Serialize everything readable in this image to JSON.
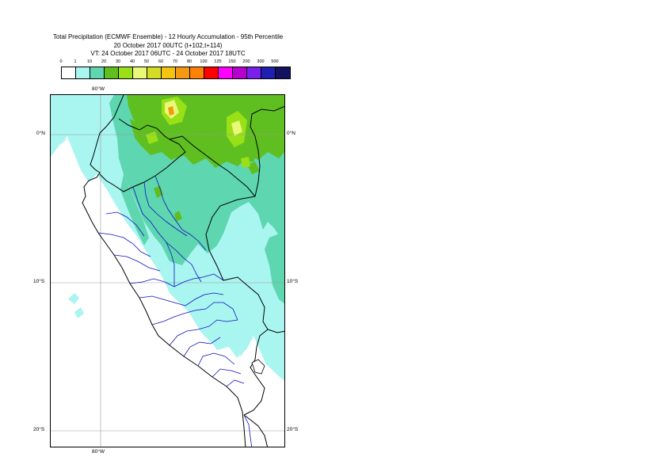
{
  "header": {
    "title_line1": "Total Precipitation (ECMWF Ensemble) - 12 Hourly Accumulation - 95th Percentile",
    "title_line2": "20 October 2017 00UTC (t+102,t+114)",
    "title_line3": "VT: 24 October 2017 06UTC - 24 October 2017 18UTC"
  },
  "legend": {
    "thresholds": [
      "0",
      "1",
      "10",
      "20",
      "30",
      "40",
      "50",
      "60",
      "70",
      "80",
      "100",
      "125",
      "150",
      "200",
      "300",
      "500"
    ],
    "colors": [
      "#ffffff",
      "#a9f5f0",
      "#5ed6b0",
      "#5fbf20",
      "#99e017",
      "#e9f977",
      "#d5dc26",
      "#f4c410",
      "#f39a12",
      "#ff8207",
      "#fe0000",
      "#ff00ff",
      "#b600ce",
      "#7b1fee",
      "#2020b0",
      "#12125e"
    ]
  },
  "map": {
    "lon_label_top": "80°W",
    "lon_label_bottom": "80°W",
    "lat_labels": [
      {
        "left": "0°N",
        "right": "0°N",
        "lat": 0
      },
      {
        "left": "10°S",
        "right": "10°S",
        "lat": -10
      },
      {
        "left": "20°S",
        "right": "20°S",
        "lat": -20
      }
    ],
    "colors": {
      "light": "#a9f5f0",
      "medium": "#5ed6b0",
      "green": "#5fbf20",
      "yellowgreen": "#99e017",
      "yellow": "#e9f977",
      "orange": "#f39a12",
      "country_border": "#000000",
      "region_border": "#1010c0",
      "grid": "#999999"
    }
  }
}
